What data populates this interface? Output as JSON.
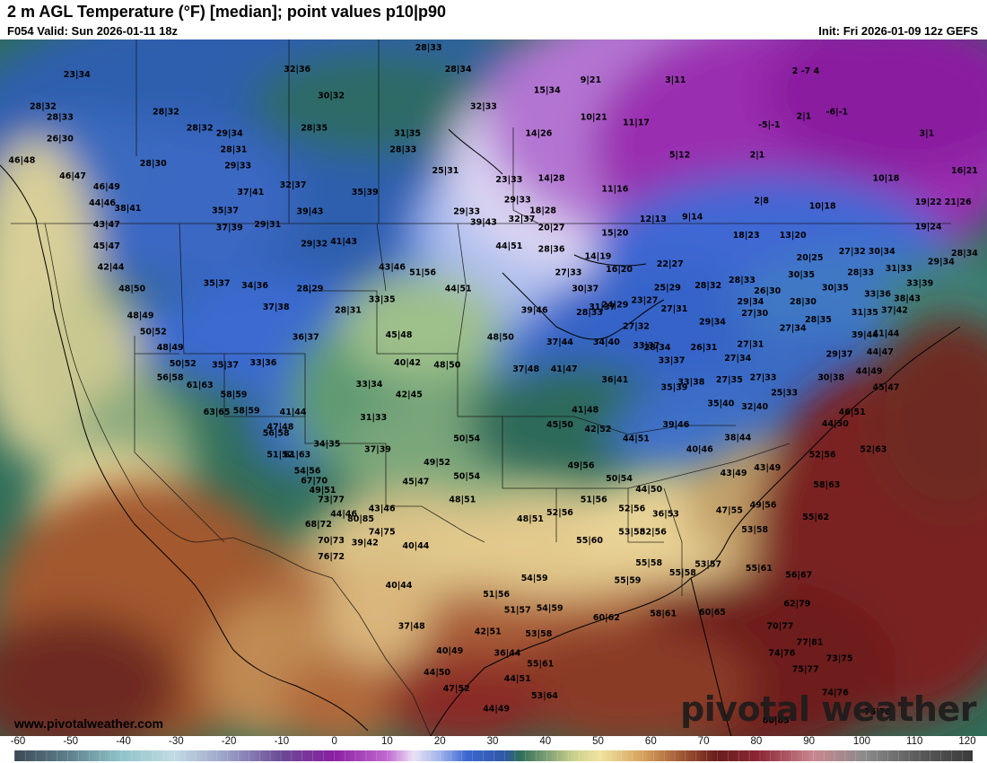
{
  "header": {
    "title": "2 m AGL Temperature (°F) [median]; point values p10|p90",
    "valid": "F054 Valid: Sun 2026-01-11 18z",
    "init": "Init: Fri 2026-01-09 12z GEFS"
  },
  "footer": {
    "website": "www.pivotalweather.com",
    "logo_text": "pivotal weather"
  },
  "colorbar": {
    "ticks": [
      "-60",
      "-50",
      "-40",
      "-30",
      "-20",
      "-10",
      "0",
      "10",
      "20",
      "30",
      "40",
      "50",
      "60",
      "70",
      "80",
      "90",
      "100",
      "110",
      "120"
    ],
    "stops": [
      {
        "v": -60,
        "c": "#3b4a55"
      },
      {
        "v": -50,
        "c": "#5d7f8c"
      },
      {
        "v": -40,
        "c": "#8fc3c9"
      },
      {
        "v": -30,
        "c": "#c2dbe3"
      },
      {
        "v": -20,
        "c": "#9aa0c6"
      },
      {
        "v": -10,
        "c": "#6a4a96"
      },
      {
        "v": 0,
        "c": "#8a1fa0"
      },
      {
        "v": 10,
        "c": "#c069cf"
      },
      {
        "v": 15,
        "c": "#e9e2f4"
      },
      {
        "v": 20,
        "c": "#9fb3ea"
      },
      {
        "v": 25,
        "c": "#3c67d2"
      },
      {
        "v": 32,
        "c": "#2f58a6"
      },
      {
        "v": 35,
        "c": "#2f6e58"
      },
      {
        "v": 45,
        "c": "#c9d08c"
      },
      {
        "v": 50,
        "c": "#f0e3a0"
      },
      {
        "v": 58,
        "c": "#d6a25c"
      },
      {
        "v": 65,
        "c": "#a45a35"
      },
      {
        "v": 72,
        "c": "#6a1c1c"
      },
      {
        "v": 80,
        "c": "#8e2736"
      },
      {
        "v": 90,
        "c": "#c98790"
      },
      {
        "v": 100,
        "c": "#8a8a8a"
      },
      {
        "v": 110,
        "c": "#5a5a5a"
      },
      {
        "v": 120,
        "c": "#3a3a3a"
      }
    ]
  },
  "point_values": [
    {
      "t": "23|34",
      "lon": -132.0,
      "lat": 58.5
    },
    {
      "t": "28|32",
      "lon": -136.0,
      "lat": 55.5
    },
    {
      "t": "28|33",
      "lon": -134.0,
      "lat": 54.5
    },
    {
      "t": "26|30",
      "lon": -134.0,
      "lat": 52.5
    },
    {
      "t": "46|48",
      "lon": -138.5,
      "lat": 50.5
    },
    {
      "t": "46|47",
      "lon": -132.5,
      "lat": 49.0
    },
    {
      "t": "46|49",
      "lon": -128.5,
      "lat": 48.0
    },
    {
      "t": "44|46",
      "lon": -129.0,
      "lat": 46.5
    },
    {
      "t": "38|41",
      "lon": -126.0,
      "lat": 46.0
    },
    {
      "t": "43|47",
      "lon": -128.5,
      "lat": 44.5
    },
    {
      "t": "45|47",
      "lon": -128.5,
      "lat": 42.5
    },
    {
      "t": "42|44",
      "lon": -128.0,
      "lat": 40.5
    },
    {
      "t": "48|50",
      "lon": -125.5,
      "lat": 38.5
    },
    {
      "t": "48|49",
      "lon": -124.5,
      "lat": 36.0
    },
    {
      "t": "50|52",
      "lon": -123.0,
      "lat": 34.5
    },
    {
      "t": "48|49",
      "lon": -121.0,
      "lat": 33.0
    },
    {
      "t": "50|52",
      "lon": -119.5,
      "lat": 31.5
    },
    {
      "t": "56|58",
      "lon": -121.0,
      "lat": 30.2
    },
    {
      "t": "61|63",
      "lon": -117.5,
      "lat": 29.5
    },
    {
      "t": "63|65",
      "lon": -115.5,
      "lat": 27.0
    },
    {
      "t": "58|59",
      "lon": -113.5,
      "lat": 28.6
    },
    {
      "t": "58|59",
      "lon": -112.0,
      "lat": 27.1
    },
    {
      "t": "56|58",
      "lon": -108.5,
      "lat": 25.0
    },
    {
      "t": "61|63",
      "lon": -106.0,
      "lat": 23.0
    },
    {
      "t": "67|70",
      "lon": -104.0,
      "lat": 20.6
    },
    {
      "t": "73|77",
      "lon": -102.0,
      "lat": 18.8
    },
    {
      "t": "68|72",
      "lon": -103.5,
      "lat": 16.5
    },
    {
      "t": "70|73",
      "lon": -102.0,
      "lat": 15.0
    },
    {
      "t": "76|72",
      "lon": -102.0,
      "lat": 13.5
    },
    {
      "t": "80|85",
      "lon": -98.5,
      "lat": 17.0
    },
    {
      "t": "74|75",
      "lon": -96.0,
      "lat": 15.8
    },
    {
      "t": "28|30",
      "lon": -123.0,
      "lat": 50.2
    },
    {
      "t": "28|32",
      "lon": -121.5,
      "lat": 55.0
    },
    {
      "t": "28|32",
      "lon": -117.5,
      "lat": 53.5
    },
    {
      "t": "29|34",
      "lon": -114.0,
      "lat": 53.0
    },
    {
      "t": "28|31",
      "lon": -113.5,
      "lat": 51.5
    },
    {
      "t": "29|33",
      "lon": -113.0,
      "lat": 50.0
    },
    {
      "t": "37|41",
      "lon": -111.5,
      "lat": 47.5
    },
    {
      "t": "32|36",
      "lon": -106.0,
      "lat": 59.0
    },
    {
      "t": "30|32",
      "lon": -102.0,
      "lat": 56.5
    },
    {
      "t": "28|35",
      "lon": -104.0,
      "lat": 53.5
    },
    {
      "t": "32|37",
      "lon": -106.5,
      "lat": 48.2
    },
    {
      "t": "35|37",
      "lon": -114.5,
      "lat": 45.8
    },
    {
      "t": "37|39",
      "lon": -114.0,
      "lat": 44.2
    },
    {
      "t": "29|31",
      "lon": -109.5,
      "lat": 44.5
    },
    {
      "t": "39|43",
      "lon": -104.5,
      "lat": 45.7
    },
    {
      "t": "35|39",
      "lon": -98.0,
      "lat": 47.5
    },
    {
      "t": "29|32",
      "lon": -104.0,
      "lat": 42.7
    },
    {
      "t": "41|43",
      "lon": -100.5,
      "lat": 42.9
    },
    {
      "t": "35|37",
      "lon": -115.5,
      "lat": 39.0
    },
    {
      "t": "34|36",
      "lon": -111.0,
      "lat": 38.8
    },
    {
      "t": "37|38",
      "lon": -108.5,
      "lat": 36.8
    },
    {
      "t": "28|29",
      "lon": -104.5,
      "lat": 38.5
    },
    {
      "t": "28|31",
      "lon": -100.0,
      "lat": 36.5
    },
    {
      "t": "33|35",
      "lon": -96.0,
      "lat": 37.5
    },
    {
      "t": "43|46",
      "lon": -94.8,
      "lat": 40.5
    },
    {
      "t": "51|56",
      "lon": -91.2,
      "lat": 40.0
    },
    {
      "t": "44|51",
      "lon": -87.0,
      "lat": 38.5
    },
    {
      "t": "36|37",
      "lon": -105.0,
      "lat": 34.0
    },
    {
      "t": "45|48",
      "lon": -94.0,
      "lat": 34.2
    },
    {
      "t": "33|36",
      "lon": -110.0,
      "lat": 31.6
    },
    {
      "t": "35|37",
      "lon": -114.5,
      "lat": 31.4
    },
    {
      "t": "40|42",
      "lon": -93.0,
      "lat": 31.6
    },
    {
      "t": "48|50",
      "lon": -88.3,
      "lat": 31.4
    },
    {
      "t": "33|34",
      "lon": -97.5,
      "lat": 29.6
    },
    {
      "t": "42|45",
      "lon": -92.8,
      "lat": 28.6
    },
    {
      "t": "41|44",
      "lon": -106.5,
      "lat": 27.0
    },
    {
      "t": "47|48",
      "lon": -108.0,
      "lat": 25.6
    },
    {
      "t": "31|33",
      "lon": -97.0,
      "lat": 26.5
    },
    {
      "t": "34|35",
      "lon": -102.5,
      "lat": 24.0
    },
    {
      "t": "37|39",
      "lon": -96.5,
      "lat": 23.5
    },
    {
      "t": "51|52",
      "lon": -108.0,
      "lat": 23.0
    },
    {
      "t": "54|56",
      "lon": -104.8,
      "lat": 21.5
    },
    {
      "t": "49|51",
      "lon": -103.0,
      "lat": 19.7
    },
    {
      "t": "44|46",
      "lon": -100.5,
      "lat": 17.5
    },
    {
      "t": "43|46",
      "lon": -96.0,
      "lat": 18.0
    },
    {
      "t": "39|42",
      "lon": -98.0,
      "lat": 14.8
    },
    {
      "t": "49|52",
      "lon": -89.5,
      "lat": 22.3
    },
    {
      "t": "45|47",
      "lon": -92.0,
      "lat": 20.5
    },
    {
      "t": "50|54",
      "lon": -86.0,
      "lat": 24.5
    },
    {
      "t": "50|54",
      "lon": -86.0,
      "lat": 21.0
    },
    {
      "t": "48|51",
      "lon": -86.5,
      "lat": 18.8
    },
    {
      "t": "40|44",
      "lon": -92.0,
      "lat": 14.5
    },
    {
      "t": "40|44",
      "lon": -94.0,
      "lat": 10.8
    },
    {
      "t": "37|48",
      "lon": -92.5,
      "lat": 7.0
    },
    {
      "t": "40|49",
      "lon": -88.0,
      "lat": 4.7
    },
    {
      "t": "44|50",
      "lon": -89.5,
      "lat": 2.7
    },
    {
      "t": "47|52",
      "lon": -87.2,
      "lat": 1.2
    },
    {
      "t": "42|51",
      "lon": -83.5,
      "lat": 6.5
    },
    {
      "t": "51|56",
      "lon": -82.5,
      "lat": 10.0
    },
    {
      "t": "51|57",
      "lon": -80.0,
      "lat": 8.5
    },
    {
      "t": "54|59",
      "lon": -78.0,
      "lat": 11.5
    },
    {
      "t": "54|59",
      "lon": -76.2,
      "lat": 8.7
    },
    {
      "t": "53|58",
      "lon": -77.5,
      "lat": 6.3
    },
    {
      "t": "36|44",
      "lon": -81.2,
      "lat": 4.5
    },
    {
      "t": "55|61",
      "lon": -77.3,
      "lat": 3.5
    },
    {
      "t": "44|51",
      "lon": -80.0,
      "lat": 2.1
    },
    {
      "t": "53|64",
      "lon": -76.8,
      "lat": 0.5
    },
    {
      "t": "44|49",
      "lon": -82.5,
      "lat": -0.7
    },
    {
      "t": "44|51",
      "lon": -81.0,
      "lat": 42.5
    },
    {
      "t": "29|33",
      "lon": -80.0,
      "lat": 46.8
    },
    {
      "t": "32|37",
      "lon": -79.5,
      "lat": 45.0
    },
    {
      "t": "39|43",
      "lon": -84.0,
      "lat": 44.7
    },
    {
      "t": "28|36",
      "lon": -76.0,
      "lat": 42.2
    },
    {
      "t": "27|33",
      "lon": -74.0,
      "lat": 40.0
    },
    {
      "t": "30|37",
      "lon": -72.0,
      "lat": 38.5
    },
    {
      "t": "39|46",
      "lon": -78.0,
      "lat": 36.5
    },
    {
      "t": "31|37",
      "lon": -70.0,
      "lat": 36.8
    },
    {
      "t": "48|50",
      "lon": -82.0,
      "lat": 34.0
    },
    {
      "t": "37|44",
      "lon": -75.0,
      "lat": 33.5
    },
    {
      "t": "34|40",
      "lon": -69.5,
      "lat": 33.5
    },
    {
      "t": "37|48",
      "lon": -79.0,
      "lat": 31.0
    },
    {
      "t": "41|47",
      "lon": -74.5,
      "lat": 31.0
    },
    {
      "t": "36|41",
      "lon": -68.5,
      "lat": 30.0
    },
    {
      "t": "33|37",
      "lon": -64.8,
      "lat": 33.2
    },
    {
      "t": "33|37",
      "lon": -61.8,
      "lat": 31.8
    },
    {
      "t": "41|48",
      "lon": -72.0,
      "lat": 27.2
    },
    {
      "t": "45|50",
      "lon": -75.0,
      "lat": 25.8
    },
    {
      "t": "42|52",
      "lon": -70.5,
      "lat": 25.4
    },
    {
      "t": "44|51",
      "lon": -66.0,
      "lat": 24.5
    },
    {
      "t": "35|39",
      "lon": -61.5,
      "lat": 29.3
    },
    {
      "t": "39|46",
      "lon": -61.3,
      "lat": 25.8
    },
    {
      "t": "40|46",
      "lon": -58.5,
      "lat": 23.5
    },
    {
      "t": "35|40",
      "lon": -56.0,
      "lat": 27.8
    },
    {
      "t": "38|44",
      "lon": -54.0,
      "lat": 24.6
    },
    {
      "t": "32|40",
      "lon": -52.0,
      "lat": 27.5
    },
    {
      "t": "43|49",
      "lon": -54.5,
      "lat": 21.3
    },
    {
      "t": "43|49",
      "lon": -50.5,
      "lat": 21.8
    },
    {
      "t": "44|50",
      "lon": -42.5,
      "lat": 25.9
    },
    {
      "t": "52|56",
      "lon": -44.0,
      "lat": 23.0
    },
    {
      "t": "52|63",
      "lon": -38.0,
      "lat": 23.5
    },
    {
      "t": "46|51",
      "lon": -40.5,
      "lat": 27.0
    },
    {
      "t": "25|33",
      "lon": -48.5,
      "lat": 28.8
    },
    {
      "t": "30|38",
      "lon": -43.0,
      "lat": 30.2
    },
    {
      "t": "44|49",
      "lon": -38.5,
      "lat": 30.8
    },
    {
      "t": "45|47",
      "lon": -36.5,
      "lat": 29.3
    },
    {
      "t": "29|37",
      "lon": -42.0,
      "lat": 32.4
    },
    {
      "t": "39|44",
      "lon": -39.0,
      "lat": 34.2
    },
    {
      "t": "41|44",
      "lon": -36.5,
      "lat": 34.3
    },
    {
      "t": "44|47",
      "lon": -37.2,
      "lat": 32.6
    },
    {
      "t": "49|56",
      "lon": -72.5,
      "lat": 22.0
    },
    {
      "t": "50|54",
      "lon": -68.0,
      "lat": 20.8
    },
    {
      "t": "44|50",
      "lon": -64.5,
      "lat": 19.8
    },
    {
      "t": "51|56",
      "lon": -71.0,
      "lat": 18.8
    },
    {
      "t": "52|56",
      "lon": -66.5,
      "lat": 18.0
    },
    {
      "t": "36|53",
      "lon": -62.5,
      "lat": 17.5
    },
    {
      "t": "47|55",
      "lon": -55.0,
      "lat": 17.8
    },
    {
      "t": "49|56",
      "lon": -51.0,
      "lat": 18.3
    },
    {
      "t": "58|63",
      "lon": -43.5,
      "lat": 20.2
    },
    {
      "t": "55|62",
      "lon": -44.8,
      "lat": 17.2
    },
    {
      "t": "52|56",
      "lon": -64.0,
      "lat": 15.8
    },
    {
      "t": "53|58",
      "lon": -66.5,
      "lat": 15.8
    },
    {
      "t": "53|58",
      "lon": -52.0,
      "lat": 16.0
    },
    {
      "t": "55|60",
      "lon": -71.5,
      "lat": 15.0
    },
    {
      "t": "48|51",
      "lon": -78.5,
      "lat": 17.0
    },
    {
      "t": "52|56",
      "lon": -75.0,
      "lat": 17.6
    },
    {
      "t": "55|58",
      "lon": -64.5,
      "lat": 12.9
    },
    {
      "t": "55|58",
      "lon": -60.5,
      "lat": 12.0
    },
    {
      "t": "53|57",
      "lon": -57.5,
      "lat": 12.8
    },
    {
      "t": "55|61",
      "lon": -51.5,
      "lat": 12.4
    },
    {
      "t": "56|67",
      "lon": -46.8,
      "lat": 11.8
    },
    {
      "t": "55|59",
      "lon": -67.0,
      "lat": 11.3
    },
    {
      "t": "62|79",
      "lon": -47.0,
      "lat": 9.1
    },
    {
      "t": "60|62",
      "lon": -69.5,
      "lat": 7.8
    },
    {
      "t": "58|61",
      "lon": -62.8,
      "lat": 8.2
    },
    {
      "t": "60|65",
      "lon": -57.0,
      "lat": 8.3
    },
    {
      "t": "70|77",
      "lon": -49.0,
      "lat": 7.0
    },
    {
      "t": "77|81",
      "lon": -45.5,
      "lat": 5.5
    },
    {
      "t": "74|76",
      "lon": -48.8,
      "lat": 4.5
    },
    {
      "t": "73|75",
      "lon": -42.0,
      "lat": 4.0
    },
    {
      "t": "75|77",
      "lon": -46.0,
      "lat": 3.0
    },
    {
      "t": "74|76",
      "lon": -42.5,
      "lat": 0.8
    },
    {
      "t": "75|78",
      "lon": -37.5,
      "lat": -1.0
    },
    {
      "t": "80|85",
      "lon": -49.5,
      "lat": -1.8
    },
    {
      "t": "15|34",
      "lon": -76.5,
      "lat": 57.0
    },
    {
      "t": "9|21",
      "lon": -71.0,
      "lat": 58.0
    },
    {
      "t": "28|33",
      "lon": -90.5,
      "lat": 61.0
    },
    {
      "t": "28|34",
      "lon": -87.0,
      "lat": 59.0
    },
    {
      "t": "3|11",
      "lon": -61.0,
      "lat": 58.0
    },
    {
      "t": "10|21",
      "lon": -71.0,
      "lat": 54.5
    },
    {
      "t": "11|17",
      "lon": -66.0,
      "lat": 54.0
    },
    {
      "t": "31|35",
      "lon": -93.0,
      "lat": 53.0
    },
    {
      "t": "32|33",
      "lon": -84.0,
      "lat": 55.5
    },
    {
      "t": "28|33",
      "lon": -93.5,
      "lat": 51.5
    },
    {
      "t": "14|26",
      "lon": -77.5,
      "lat": 53.0
    },
    {
      "t": "5|12",
      "lon": -60.5,
      "lat": 51.0
    },
    {
      "t": "25|31",
      "lon": -88.5,
      "lat": 49.5
    },
    {
      "t": "23|33",
      "lon": -81.0,
      "lat": 48.7
    },
    {
      "t": "14|28",
      "lon": -76.0,
      "lat": 48.8
    },
    {
      "t": "11|16",
      "lon": -68.5,
      "lat": 47.8
    },
    {
      "t": "29|33",
      "lon": -86.0,
      "lat": 45.7
    },
    {
      "t": "18|28",
      "lon": -77.0,
      "lat": 45.8
    },
    {
      "t": "20|27",
      "lon": -76.0,
      "lat": 44.2
    },
    {
      "t": "12|13",
      "lon": -64.0,
      "lat": 45.0
    },
    {
      "t": "9|14",
      "lon": -59.0,
      "lat": 45.2
    },
    {
      "t": "15|20",
      "lon": -68.5,
      "lat": 43.7
    },
    {
      "t": "14|19",
      "lon": -70.5,
      "lat": 41.5
    },
    {
      "t": "16|20",
      "lon": -68.0,
      "lat": 40.3
    },
    {
      "t": "22|27",
      "lon": -62.0,
      "lat": 40.8
    },
    {
      "t": "25|29",
      "lon": -62.3,
      "lat": 38.6
    },
    {
      "t": "28|32",
      "lon": -57.5,
      "lat": 38.8
    },
    {
      "t": "28|33",
      "lon": -53.5,
      "lat": 39.3
    },
    {
      "t": "24|29",
      "lon": -68.5,
      "lat": 37.0
    },
    {
      "t": "23|27",
      "lon": -65.0,
      "lat": 37.4
    },
    {
      "t": "28|33",
      "lon": -71.5,
      "lat": 36.3
    },
    {
      "t": "27|31",
      "lon": -61.5,
      "lat": 36.6
    },
    {
      "t": "27|32",
      "lon": -66.0,
      "lat": 35.0
    },
    {
      "t": "29|34",
      "lon": -57.0,
      "lat": 35.4
    },
    {
      "t": "29|34",
      "lon": -52.5,
      "lat": 37.3
    },
    {
      "t": "26|30",
      "lon": -50.5,
      "lat": 38.3
    },
    {
      "t": "27|30",
      "lon": -52.0,
      "lat": 36.2
    },
    {
      "t": "28|30",
      "lon": -46.3,
      "lat": 37.3
    },
    {
      "t": "30|35",
      "lon": -46.5,
      "lat": 39.8
    },
    {
      "t": "30|35",
      "lon": -42.5,
      "lat": 38.6
    },
    {
      "t": "28|34",
      "lon": -63.5,
      "lat": 33.0
    },
    {
      "t": "26|31",
      "lon": -58.0,
      "lat": 33.0
    },
    {
      "t": "27|34",
      "lon": -54.0,
      "lat": 32.0
    },
    {
      "t": "27|31",
      "lon": -52.5,
      "lat": 33.3
    },
    {
      "t": "27|34",
      "lon": -47.5,
      "lat": 34.8
    },
    {
      "t": "28|35",
      "lon": -44.5,
      "lat": 35.6
    },
    {
      "t": "27|35",
      "lon": -55.0,
      "lat": 30.0
    },
    {
      "t": "27|33",
      "lon": -51.0,
      "lat": 30.2
    },
    {
      "t": "33|38",
      "lon": -59.5,
      "lat": 29.8
    },
    {
      "t": "18|23",
      "lon": -53.0,
      "lat": 43.5
    },
    {
      "t": "13|20",
      "lon": -47.5,
      "lat": 43.5
    },
    {
      "t": "20|25",
      "lon": -45.5,
      "lat": 41.4
    },
    {
      "t": "27|32",
      "lon": -40.5,
      "lat": 42.0
    },
    {
      "t": "30|34",
      "lon": -37.0,
      "lat": 42.0
    },
    {
      "t": "31|33",
      "lon": -35.0,
      "lat": 40.4
    },
    {
      "t": "28|33",
      "lon": -39.5,
      "lat": 40.0
    },
    {
      "t": "33|36",
      "lon": -37.5,
      "lat": 38.0
    },
    {
      "t": "38|43",
      "lon": -34.0,
      "lat": 37.6
    },
    {
      "t": "37|42",
      "lon": -35.5,
      "lat": 36.5
    },
    {
      "t": "31|35",
      "lon": -39.0,
      "lat": 36.3
    },
    {
      "t": "33|39",
      "lon": -32.5,
      "lat": 39.0
    },
    {
      "t": "29|34",
      "lon": -30.0,
      "lat": 41.0
    },
    {
      "t": "28|34",
      "lon": -25.5,
      "lat": 41.8
    },
    {
      "t": "19|24",
      "lon": -31.5,
      "lat": 44.3
    },
    {
      "t": "19|22",
      "lon": -31.5,
      "lat": 46.6
    },
    {
      "t": "21|26",
      "lon": -28.0,
      "lat": 46.6
    },
    {
      "t": "10|18",
      "lon": -36.5,
      "lat": 48.8
    },
    {
      "t": "16|21",
      "lon": -26.0,
      "lat": 49.5
    },
    {
      "t": "10|18",
      "lon": -44.0,
      "lat": 46.2
    },
    {
      "t": "2|8",
      "lon": -50.5,
      "lat": 46.7
    },
    {
      "t": "2|1",
      "lon": -45.5,
      "lat": 54.6
    },
    {
      "t": "-6|-1",
      "lon": -42.0,
      "lat": 55.0
    },
    {
      "t": "3|1",
      "lon": -31.0,
      "lat": 53.0
    },
    {
      "t": "-5|-1",
      "lon": -50.0,
      "lat": 53.8
    },
    {
      "t": "2|1",
      "lon": -51.0,
      "lat": 51.0
    },
    {
      "t": "2 -7 4",
      "lon": -46.0,
      "lat": 58.8
    }
  ]
}
